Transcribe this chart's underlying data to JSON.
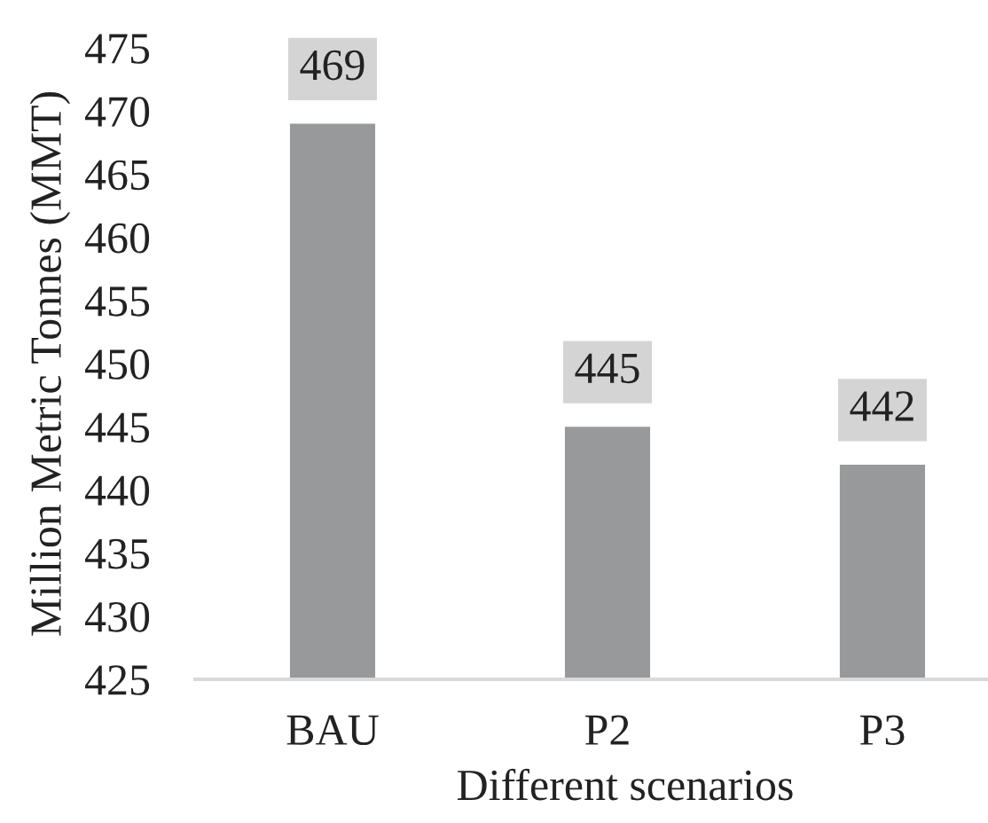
{
  "chart_data": {
    "type": "bar",
    "categories": [
      "BAU",
      "P2",
      "P3"
    ],
    "values": [
      469,
      445,
      442
    ],
    "color": "#98999b",
    "xlabel": "Different scenarios",
    "ylabel": "Million Metric Tonnes (MMT)",
    "ylim": [
      425,
      475
    ],
    "yticks": [
      425,
      430,
      435,
      440,
      445,
      450,
      455,
      460,
      465,
      470,
      475
    ],
    "data_labels": true,
    "grid": false,
    "legend": false
  }
}
